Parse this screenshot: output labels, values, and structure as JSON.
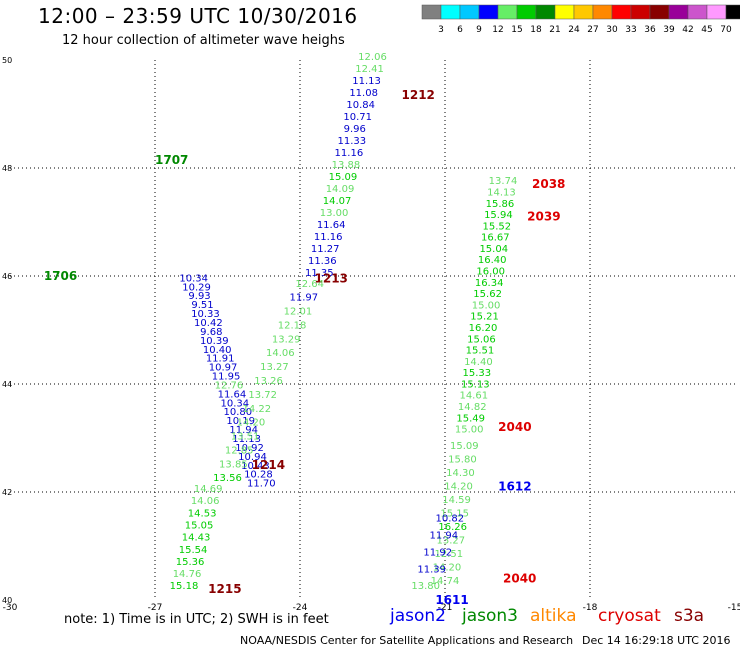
{
  "header": {
    "title": "12:00 – 23:59 UTC 10/30/2016",
    "subtitle": "12 hour collection of altimeter wave heighs"
  },
  "scale": {
    "unit": "(ft)",
    "ticks": [
      "3",
      "6",
      "9",
      "12",
      "15",
      "18",
      "21",
      "24",
      "27",
      "30",
      "33",
      "36",
      "39",
      "42",
      "45",
      "70"
    ],
    "colors": [
      "#808080",
      "#00ffff",
      "#00c8ff",
      "#0000ff",
      "#66ee66",
      "#00cc00",
      "#008800",
      "#ffff00",
      "#ffc800",
      "#ff8800",
      "#ff0000",
      "#cc0000",
      "#880000",
      "#990099",
      "#cc55cc",
      "#ff99ff",
      "#000000"
    ]
  },
  "axes": {
    "lon": {
      "labels": [
        "-30",
        "-27",
        "-24",
        "-21",
        "-18",
        "-15"
      ],
      "values": [
        -30,
        -27,
        -24,
        -21,
        -18,
        -15
      ]
    },
    "lat": {
      "labels": [
        "50",
        "48",
        "46",
        "44",
        "42",
        "40"
      ],
      "values": [
        50,
        48,
        46,
        44,
        42,
        40
      ]
    }
  },
  "note": "note: 1) Time is in UTC; 2) SWH is in feet",
  "legend": [
    {
      "label": "jason2",
      "color": "#0000ee"
    },
    {
      "label": "jason3",
      "color": "#008800"
    },
    {
      "label": "altika",
      "color": "#ff8800"
    },
    {
      "label": "cryosat",
      "color": "#dd0000"
    },
    {
      "label": "s3a",
      "color": "#880000"
    }
  ],
  "footer": {
    "org": "NOAA/NESDIS Center for Satellite Applications and Research",
    "date": "Dec 14 16:29:18 UTC 2016"
  },
  "colors": {
    "c12": "#0000cc",
    "c15": "#66dd66",
    "c18": "#00cc00",
    "c21": "#008800",
    "jason2": "#0000ee",
    "jason3": "#008800",
    "cryosat": "#dd0000",
    "s3a": "#880000"
  },
  "tracks": [
    {
      "lon1": -24.8,
      "lat1": 42.1,
      "lon2": -26.2,
      "lat2": 45.9,
      "values": [
        "11.70",
        "10.28",
        "10.43",
        "10.94",
        "10.92",
        "11.13",
        "11.94",
        "10.19",
        "10.80",
        "10.34",
        "11.64",
        "12.76",
        "11.95",
        "10.97",
        "11.91",
        "10.40",
        "10.39",
        "9.68",
        "10.42",
        "10.33",
        "9.51",
        "9.93",
        "10.29",
        "10.34"
      ],
      "colors": [
        "c12",
        "c12",
        "c12",
        "c12",
        "c12",
        "c12",
        "c12",
        "c12",
        "c12",
        "c12",
        "c12",
        "c15",
        "c12",
        "c12",
        "c12",
        "c12",
        "c12",
        "c12",
        "c12",
        "c12",
        "c12",
        "c12",
        "c12",
        "c12"
      ],
      "label": "1706",
      "label_lon": -29.3,
      "label_lat": 46.0,
      "label_sat": "jason3",
      "label2": "1707",
      "label2_lon": -27.0,
      "label2_lat": 48.15,
      "label2_sat": "jason3"
    },
    {
      "lon1": -22.5,
      "lat1": 50.0,
      "lon2": -23.6,
      "lat2": 46.0,
      "values": [
        "12.06",
        "12.41",
        "11.13",
        "11.08",
        "10.84",
        "10.71",
        "9.96",
        "11.33",
        "11.16",
        "13.88",
        "15.09",
        "14.09",
        "14.07",
        "13.00",
        "11.64",
        "11.16",
        "11.27",
        "11.36",
        "11.35"
      ],
      "colors": [
        "c15",
        "c15",
        "c12",
        "c12",
        "c12",
        "c12",
        "c12",
        "c12",
        "c12",
        "c15",
        "c18",
        "c15",
        "c18",
        "c15",
        "c12",
        "c12",
        "c12",
        "c12",
        "c12"
      ],
      "label": "1212",
      "label_lon": -21.9,
      "label_lat": 49.35,
      "label_sat": "s3a",
      "label2": "1213",
      "label2_lon": -23.7,
      "label2_lat": 45.95,
      "label2_sat": "s3a"
    },
    {
      "lon1": -23.8,
      "lat1": 45.8,
      "lon2": -25.5,
      "lat2": 42.2,
      "values": [
        "12.64",
        "11.97",
        "12.01",
        "12.18",
        "13.29",
        "14.06",
        "13.27",
        "13.26",
        "13.72",
        "14.22",
        "14.20",
        "13.51",
        "12.85",
        "13.85",
        "13.56"
      ],
      "colors": [
        "c15",
        "c12",
        "c15",
        "c15",
        "c15",
        "c15",
        "c15",
        "c15",
        "c15",
        "c15",
        "c15",
        "c15",
        "c15",
        "c15",
        "c18"
      ],
      "label": "1214",
      "label_lon": -25.0,
      "label_lat": 42.5,
      "label_sat": "s3a"
    },
    {
      "lon1": -25.9,
      "lat1": 42.0,
      "lon2": -26.4,
      "lat2": 40.2,
      "values": [
        "14.69",
        "14.06",
        "14.53",
        "15.05",
        "14.43",
        "15.54",
        "15.36",
        "14.76",
        "15.18"
      ],
      "colors": [
        "c15",
        "c15",
        "c18",
        "c18",
        "c18",
        "c18",
        "c18",
        "c15",
        "c18"
      ],
      "label": "1215",
      "label_lon": -25.9,
      "label_lat": 40.2,
      "label_sat": "s3a"
    },
    {
      "lon1": -19.8,
      "lat1": 47.7,
      "lon2": -20.5,
      "lat2": 43.1,
      "values": [
        "13.74",
        "14.13",
        "15.86",
        "15.94",
        "15.52",
        "16.67",
        "15.04",
        "16.40",
        "16.00",
        "16.34",
        "15.62",
        "15.00",
        "15.21",
        "16.20",
        "15.06",
        "15.51",
        "14.40",
        "15.33",
        "15.13",
        "14.61",
        "14.82",
        "15.49",
        "15.00"
      ],
      "colors": [
        "c15",
        "c15",
        "c18",
        "c18",
        "c18",
        "c18",
        "c18",
        "c18",
        "c18",
        "c18",
        "c18",
        "c15",
        "c18",
        "c18",
        "c18",
        "c18",
        "c15",
        "c18",
        "c18",
        "c15",
        "c15",
        "c18",
        "c15"
      ],
      "label": "2038",
      "label_lon": -19.2,
      "label_lat": 47.7,
      "label_sat": "cryosat",
      "label2": "2039",
      "label2_lon": -19.3,
      "label2_lat": 47.1,
      "label2_sat": "cryosat"
    },
    {
      "lon1": -20.6,
      "lat1": 42.8,
      "lon2": -21.0,
      "lat2": 40.3,
      "values": [
        "15.09",
        "15.80",
        "14.30",
        "14.20",
        "14.59",
        "15.15",
        "16.26",
        "13.27",
        "12.51",
        "14.20",
        "14.74"
      ],
      "colors": [
        "c15",
        "c15",
        "c15",
        "c15",
        "c15",
        "c15",
        "c18",
        "c15",
        "c15",
        "c15",
        "c15"
      ],
      "label": "2040",
      "label_lon": -19.9,
      "label_lat": 43.2,
      "label_sat": "cryosat",
      "label2": "2040",
      "label2_lon": -19.8,
      "label2_lat": 40.4,
      "label2_sat": "cryosat"
    },
    {
      "lon1": -20.9,
      "lat1": 41.45,
      "lon2": -21.4,
      "lat2": 40.2,
      "values": [
        "10.82",
        "11.94",
        "11.92",
        "11.39",
        "13.80"
      ],
      "colors": [
        "c12",
        "c12",
        "c12",
        "c12",
        "c15"
      ],
      "label": "1611",
      "label_lon": -21.2,
      "label_lat": 40.0,
      "label_sat": "jason2",
      "label2": "1612",
      "label2_lon": -19.9,
      "label2_lat": 42.1,
      "label2_sat": "jason2"
    }
  ]
}
